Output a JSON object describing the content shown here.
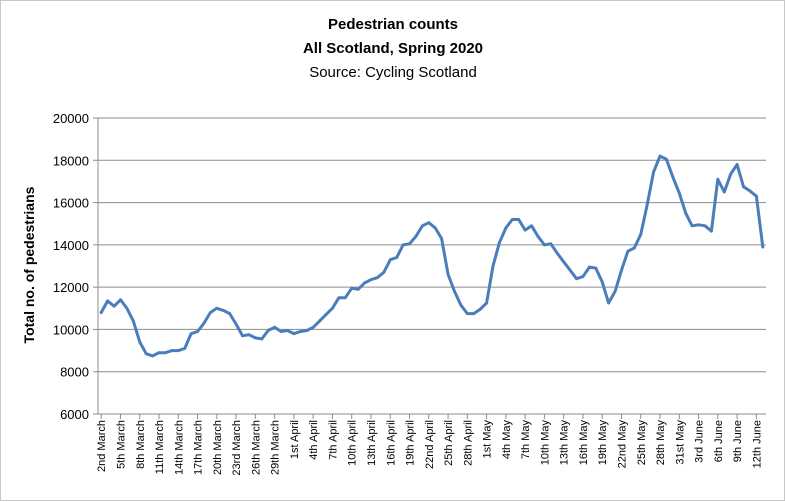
{
  "chart_data": {
    "type": "line",
    "title": "Pedestrian counts",
    "subtitle": "All Scotland, Spring 2020",
    "source": "Source: Cycling Scotland",
    "xlabel": "",
    "ylabel": "Total no. of pedestrians",
    "ylim": [
      6000,
      20000
    ],
    "yticks": [
      "6000",
      "8000",
      "10000",
      "12000",
      "14000",
      "16000",
      "18000",
      "20000"
    ],
    "grid": true,
    "legend": "none",
    "line_color": "#4a7ebb",
    "start_label": "2nd March",
    "tick_labels": [
      "2nd March",
      "5th March",
      "8th March",
      "11th March",
      "14th March",
      "17th March",
      "20th March",
      "23rd March",
      "26th March",
      "29th March",
      "1st April",
      "4th April",
      "7th April",
      "10th April",
      "13th April",
      "16th April",
      "19th April",
      "22nd April",
      "25th April",
      "28th April",
      "1st May",
      "4th May",
      "7th May",
      "10th May",
      "13th May",
      "16th May",
      "19th May",
      "22nd May",
      "25th May",
      "28th May",
      "31st May",
      "3rd June",
      "6th June",
      "9th June",
      "12th June"
    ],
    "series": [
      {
        "values": [
          10800,
          11350,
          11100,
          11400,
          11000,
          10400,
          9400,
          8850,
          8750,
          8900,
          8900,
          9000,
          9000,
          9100,
          9800,
          9900,
          10300,
          10800,
          11000,
          10900,
          10750,
          10250,
          9700,
          9750,
          9600,
          9550,
          9950,
          10100,
          9900,
          9950,
          9800,
          9900,
          9950,
          10100,
          10400,
          10700,
          11000,
          11500,
          11500,
          11950,
          11900,
          12200,
          12350,
          12450,
          12700,
          13300,
          13400,
          14000,
          14050,
          14400,
          14900,
          15050,
          14800,
          14300,
          12600,
          11800,
          11150,
          10750,
          10750,
          10950,
          11250,
          13000,
          14100,
          14800,
          15200,
          15200,
          14700,
          14900,
          14400,
          14000,
          14050,
          13600,
          13200,
          12800,
          12400,
          12500,
          12950,
          12900,
          12250,
          11250,
          11800,
          12800,
          13700,
          13850,
          14500,
          15900,
          17450,
          18200,
          18050,
          17200,
          16450,
          15500,
          14900,
          14950,
          14900,
          14650,
          17100,
          16500,
          17350,
          17800,
          16750,
          16550,
          16300,
          13900
        ]
      }
    ]
  }
}
